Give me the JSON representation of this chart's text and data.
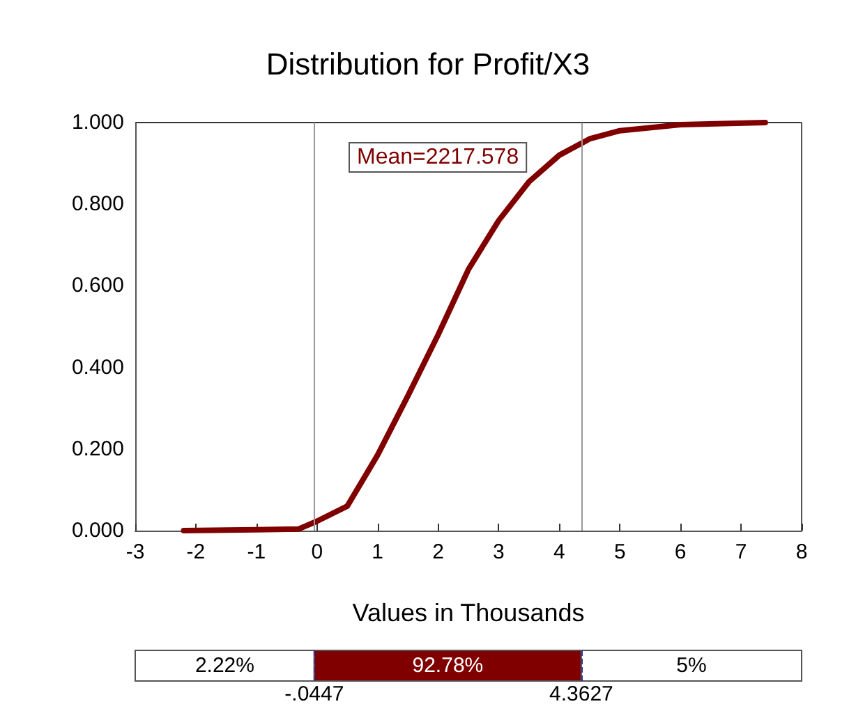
{
  "chart_data": {
    "type": "line",
    "title": "Distribution for Profit/X3",
    "xlabel": "Values in Thousands",
    "x": [
      -2.2,
      -1,
      -0.3,
      0,
      0.5,
      1,
      1.5,
      2,
      2.5,
      3,
      3.5,
      4,
      4.5,
      5,
      6,
      7.4
    ],
    "series": [
      {
        "color": "#800000",
        "values": [
          0,
          0.002,
          0.004,
          0.023,
          0.06,
          0.185,
          0.33,
          0.48,
          0.64,
          0.76,
          0.855,
          0.92,
          0.96,
          0.98,
          0.995,
          1.0
        ]
      }
    ],
    "xlim": [
      -3,
      8
    ],
    "xticks": [
      -3,
      -2,
      -1,
      0,
      1,
      2,
      3,
      4,
      5,
      6,
      7,
      8
    ],
    "ylim": [
      0,
      1
    ],
    "yticks": [
      {
        "value": 0,
        "label": "0.000"
      },
      {
        "value": 0.2,
        "label": "0.200"
      },
      {
        "value": 0.4,
        "label": "0.400"
      },
      {
        "value": 0.6,
        "label": "0.600"
      },
      {
        "value": 0.8,
        "label": "0.800"
      },
      {
        "value": 1,
        "label": "1.000"
      }
    ],
    "ref_lines": [
      {
        "axis": "x",
        "value": -0.0447,
        "color": "#999999"
      },
      {
        "axis": "x",
        "value": 4.3627,
        "color": "#999999"
      }
    ],
    "annotations": [
      "Mean=2217.578",
      "2.22%",
      "92.78%",
      "5%",
      "-.0447",
      "4.3627"
    ],
    "grid": false,
    "marker": "none",
    "line_style": "solid"
  }
}
